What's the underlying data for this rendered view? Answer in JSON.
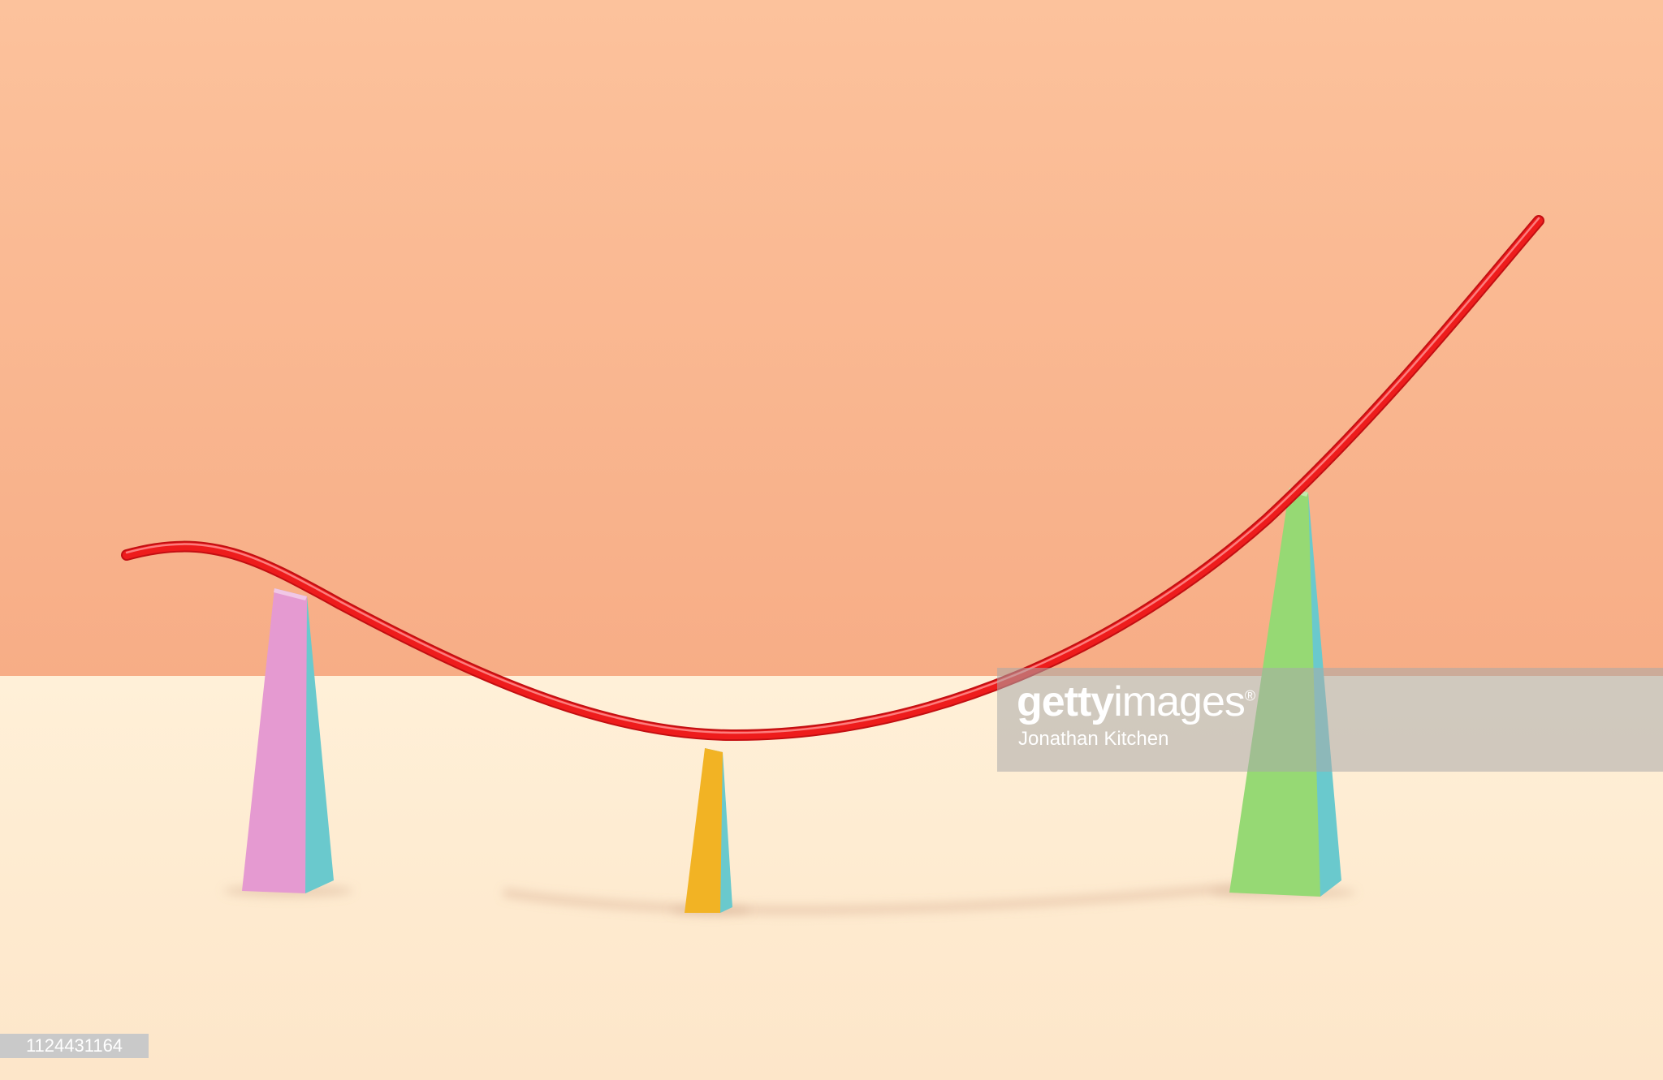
{
  "photo": {
    "subject": "red-curve-on-colored-pillars",
    "colors": {
      "wall_top": "#fcc29c",
      "wall_bottom": "#f7ad86",
      "floor": "#fde9cf",
      "curve": "#ee1c1c",
      "pillar_left_front": "#e59ad1",
      "pillar_left_side": "#6ac9cd",
      "pillar_middle_front": "#f2b324",
      "pillar_middle_side": "#6ac9cd",
      "pillar_right_front": "#96d974",
      "pillar_right_side": "#6ac9cd"
    }
  },
  "watermark": {
    "logo_bold": "getty",
    "logo_regular": "images",
    "mark": "®",
    "credit": "Jonathan Kitchen"
  },
  "image_id": "1124431164"
}
